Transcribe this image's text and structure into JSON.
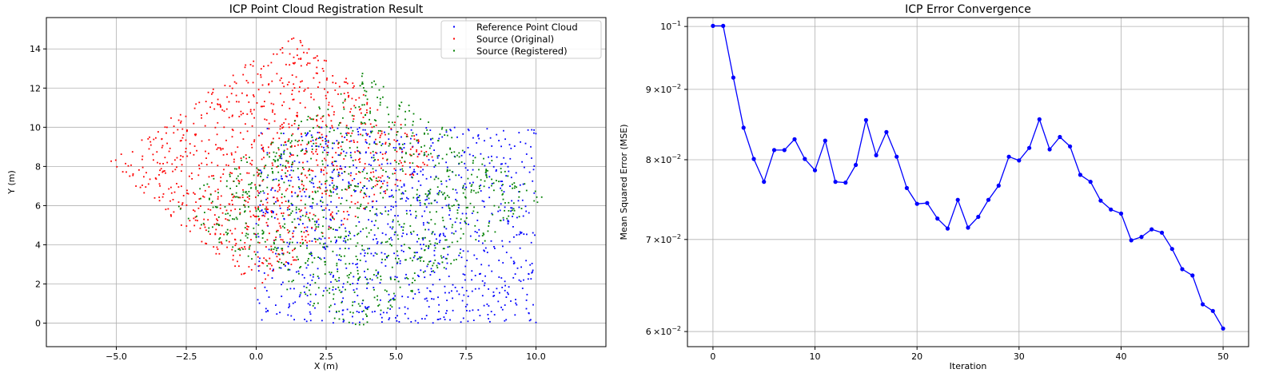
{
  "chart_data": [
    {
      "type": "scatter",
      "title": "ICP Point Cloud Registration Result",
      "xlabel": "X (m)",
      "ylabel": "Y (m)",
      "xlim": [
        -7.5,
        12.5
      ],
      "ylim": [
        -1.2,
        15.6
      ],
      "xticks": [
        -5.0,
        -2.5,
        0.0,
        2.5,
        5.0,
        7.5,
        10.0
      ],
      "xtick_labels": [
        "−5.0",
        "−2.5",
        "0.0",
        "2.5",
        "5.0",
        "7.5",
        "10.0"
      ],
      "yticks": [
        0,
        2,
        4,
        6,
        8,
        10,
        12,
        14
      ],
      "ytick_labels": [
        "0",
        "2",
        "4",
        "6",
        "8",
        "10",
        "12",
        "14"
      ],
      "grid": true,
      "legend_position": "top-right",
      "series": [
        {
          "name": "Reference Point Cloud",
          "color": "#0000ff",
          "region": {
            "shape": "rectangle",
            "x": [
              0,
              10
            ],
            "y": [
              0,
              10
            ]
          },
          "approx_count": 1000
        },
        {
          "name": "Source (Original)",
          "color": "#ff0000",
          "region": {
            "shape": "rotated-rectangle",
            "corners": [
              [
                -5.3,
                8.2
              ],
              [
                1.3,
                14.9
              ],
              [
                8.3,
                8.0
              ],
              [
                0.0,
                1.7
              ]
            ]
          },
          "approx_count": 1000
        },
        {
          "name": "Source (Registered)",
          "color": "#008000",
          "region": {
            "shape": "rotated-rectangle",
            "corners": [
              [
                -3.1,
                5.8
              ],
              [
                3.8,
                12.8
              ],
              [
                10.5,
                6.2
              ],
              [
                3.5,
                -0.6
              ]
            ]
          },
          "approx_count": 1000
        }
      ]
    },
    {
      "type": "line",
      "title": "ICP Error Convergence",
      "xlabel": "Iteration",
      "ylabel": "Mean Squared Error (MSE)",
      "yscale": "log",
      "xlim": [
        -2.5,
        52.5
      ],
      "ylim": [
        0.0585,
        0.1015
      ],
      "xticks": [
        0,
        10,
        20,
        30,
        40,
        50
      ],
      "xtick_labels": [
        "0",
        "10",
        "20",
        "30",
        "40",
        "50"
      ],
      "yticks": [
        0.06,
        0.07,
        0.08,
        0.09,
        0.1
      ],
      "ytick_labels": [
        {
          "mant": "6",
          "base": "×10",
          "exp": "−2"
        },
        {
          "mant": "7",
          "base": "×10",
          "exp": "−2"
        },
        {
          "mant": "8",
          "base": "×10",
          "exp": "−2"
        },
        {
          "mant": "9",
          "base": "×10",
          "exp": "−2"
        },
        {
          "mant": "",
          "base": "10",
          "exp": "−1"
        }
      ],
      "grid": true,
      "color": "#0000ff",
      "x": [
        0,
        1,
        2,
        3,
        4,
        5,
        6,
        7,
        8,
        9,
        10,
        11,
        12,
        13,
        14,
        15,
        16,
        17,
        18,
        19,
        20,
        21,
        22,
        23,
        24,
        25,
        26,
        27,
        28,
        29,
        30,
        31,
        32,
        33,
        34,
        35,
        36,
        37,
        38,
        39,
        40,
        41,
        42,
        43,
        44,
        45,
        46,
        47,
        48,
        49,
        50
      ],
      "y": [
        0.1001,
        0.1001,
        0.0918,
        0.0844,
        0.0801,
        0.0771,
        0.0813,
        0.0813,
        0.0828,
        0.0801,
        0.0786,
        0.0826,
        0.0771,
        0.077,
        0.0793,
        0.0855,
        0.0806,
        0.0838,
        0.0804,
        0.0763,
        0.0743,
        0.0744,
        0.0725,
        0.0713,
        0.0748,
        0.0714,
        0.0727,
        0.0748,
        0.0766,
        0.0804,
        0.0799,
        0.0816,
        0.0856,
        0.0814,
        0.0831,
        0.0818,
        0.078,
        0.0771,
        0.0747,
        0.0736,
        0.0731,
        0.0699,
        0.0703,
        0.0712,
        0.0708,
        0.0689,
        0.0666,
        0.0659,
        0.0628,
        0.0621,
        0.0603
      ]
    }
  ]
}
